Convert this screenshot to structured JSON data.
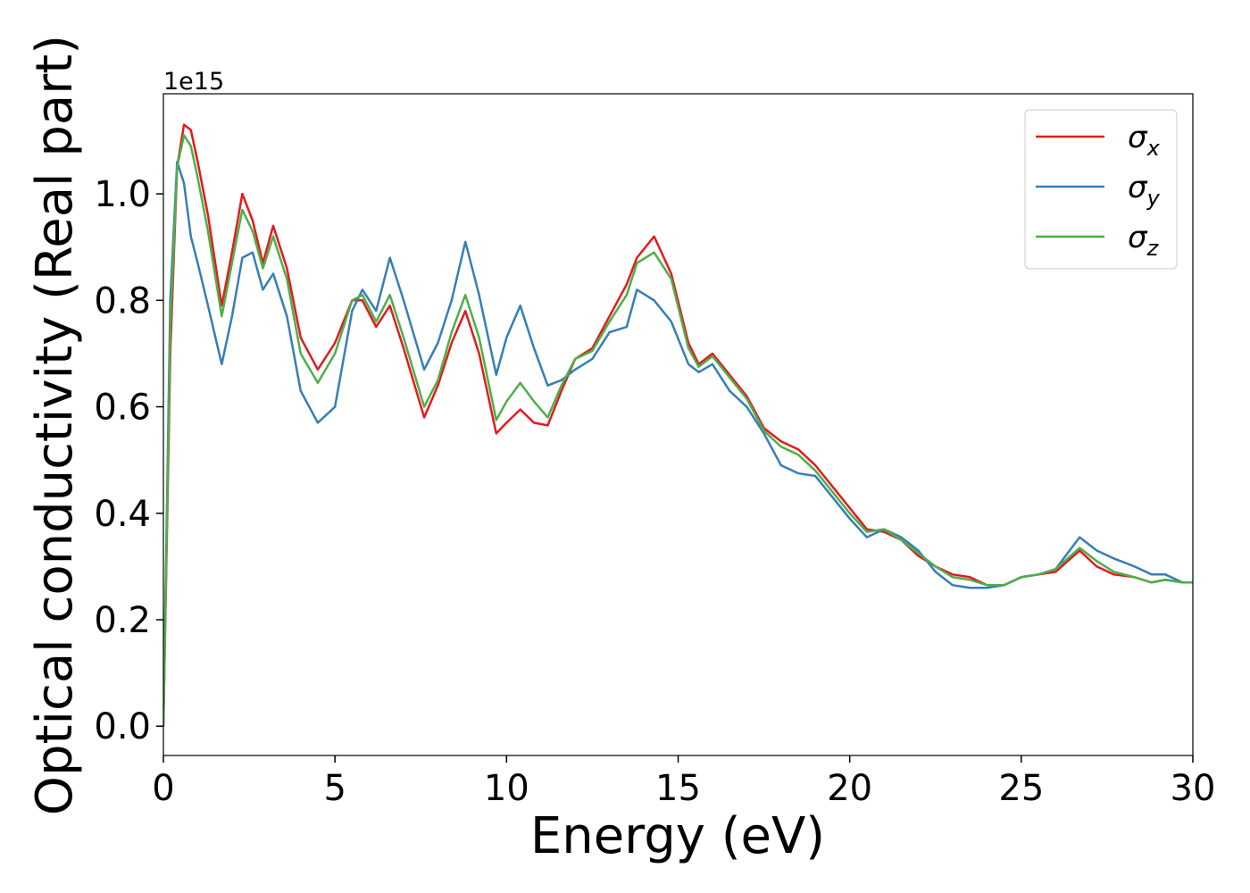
{
  "chart_data": {
    "type": "line",
    "x_label": "Energy (eV)",
    "y_label": "Optical conductivity (Real part)",
    "y_offset_label": "1e15",
    "x": [
      0,
      0.2,
      0.4,
      0.6,
      0.8,
      1.0,
      1.3,
      1.7,
      2.0,
      2.3,
      2.6,
      2.9,
      3.2,
      3.6,
      4.0,
      4.5,
      5.0,
      5.5,
      5.8,
      6.2,
      6.6,
      7.0,
      7.6,
      8.0,
      8.4,
      8.8,
      9.2,
      9.7,
      10.0,
      10.4,
      10.8,
      11.2,
      11.6,
      12.0,
      12.5,
      13.0,
      13.5,
      13.8,
      14.3,
      14.8,
      15.3,
      15.6,
      16.0,
      16.5,
      17.0,
      17.5,
      18.0,
      18.5,
      19.0,
      19.5,
      20.0,
      20.5,
      21.0,
      21.5,
      22.0,
      22.5,
      23.0,
      23.5,
      24.0,
      24.5,
      25.0,
      25.5,
      26.0,
      26.7,
      27.2,
      27.7,
      28.3,
      28.8,
      29.2,
      29.7,
      30.0
    ],
    "series": [
      {
        "name": "σx",
        "color": "#e41a1c",
        "values": [
          0,
          0.7,
          1.05,
          1.13,
          1.12,
          1.06,
          0.96,
          0.79,
          0.89,
          1.0,
          0.95,
          0.87,
          0.94,
          0.86,
          0.73,
          0.67,
          0.72,
          0.8,
          0.8,
          0.75,
          0.79,
          0.71,
          0.58,
          0.64,
          0.72,
          0.78,
          0.7,
          0.55,
          0.57,
          0.595,
          0.57,
          0.565,
          0.63,
          0.69,
          0.71,
          0.77,
          0.83,
          0.88,
          0.92,
          0.85,
          0.72,
          0.68,
          0.7,
          0.66,
          0.62,
          0.56,
          0.535,
          0.52,
          0.49,
          0.45,
          0.41,
          0.37,
          0.365,
          0.35,
          0.32,
          0.3,
          0.285,
          0.28,
          0.265,
          0.265,
          0.28,
          0.285,
          0.29,
          0.33,
          0.3,
          0.285,
          0.28,
          0.27,
          0.275,
          0.27,
          0.27
        ]
      },
      {
        "name": "σy",
        "color": "#377eb8",
        "values": [
          0,
          0.8,
          1.06,
          1.02,
          0.92,
          0.87,
          0.79,
          0.68,
          0.77,
          0.88,
          0.89,
          0.82,
          0.85,
          0.77,
          0.63,
          0.57,
          0.6,
          0.78,
          0.82,
          0.78,
          0.88,
          0.8,
          0.67,
          0.72,
          0.8,
          0.91,
          0.81,
          0.66,
          0.73,
          0.79,
          0.71,
          0.64,
          0.65,
          0.67,
          0.69,
          0.74,
          0.75,
          0.82,
          0.8,
          0.76,
          0.68,
          0.665,
          0.68,
          0.63,
          0.6,
          0.55,
          0.49,
          0.475,
          0.47,
          0.43,
          0.39,
          0.355,
          0.37,
          0.355,
          0.33,
          0.29,
          0.265,
          0.26,
          0.26,
          0.265,
          0.28,
          0.285,
          0.295,
          0.355,
          0.33,
          0.315,
          0.3,
          0.285,
          0.285,
          0.27,
          0.27
        ]
      },
      {
        "name": "σz",
        "color": "#4daf4a",
        "values": [
          0,
          0.75,
          1.05,
          1.11,
          1.09,
          1.03,
          0.93,
          0.77,
          0.87,
          0.97,
          0.93,
          0.86,
          0.92,
          0.84,
          0.7,
          0.645,
          0.7,
          0.8,
          0.81,
          0.76,
          0.81,
          0.73,
          0.6,
          0.65,
          0.74,
          0.81,
          0.73,
          0.575,
          0.61,
          0.645,
          0.61,
          0.58,
          0.64,
          0.69,
          0.705,
          0.76,
          0.81,
          0.87,
          0.89,
          0.84,
          0.71,
          0.675,
          0.695,
          0.655,
          0.615,
          0.555,
          0.525,
          0.51,
          0.48,
          0.44,
          0.4,
          0.365,
          0.37,
          0.35,
          0.325,
          0.3,
          0.28,
          0.275,
          0.265,
          0.265,
          0.28,
          0.285,
          0.295,
          0.335,
          0.31,
          0.29,
          0.28,
          0.27,
          0.275,
          0.27,
          0.27
        ]
      }
    ],
    "xlim": [
      0,
      30
    ],
    "ylim": [
      -0.055,
      1.188
    ],
    "xticks": [
      0,
      5,
      10,
      15,
      20,
      25,
      30
    ],
    "yticks": [
      {
        "value": 0,
        "label": "0.0"
      },
      0.2,
      0.4,
      0.6,
      0.8,
      {
        "value": 1,
        "label": "1.0"
      }
    ],
    "grid": false,
    "legend": "upper right"
  }
}
